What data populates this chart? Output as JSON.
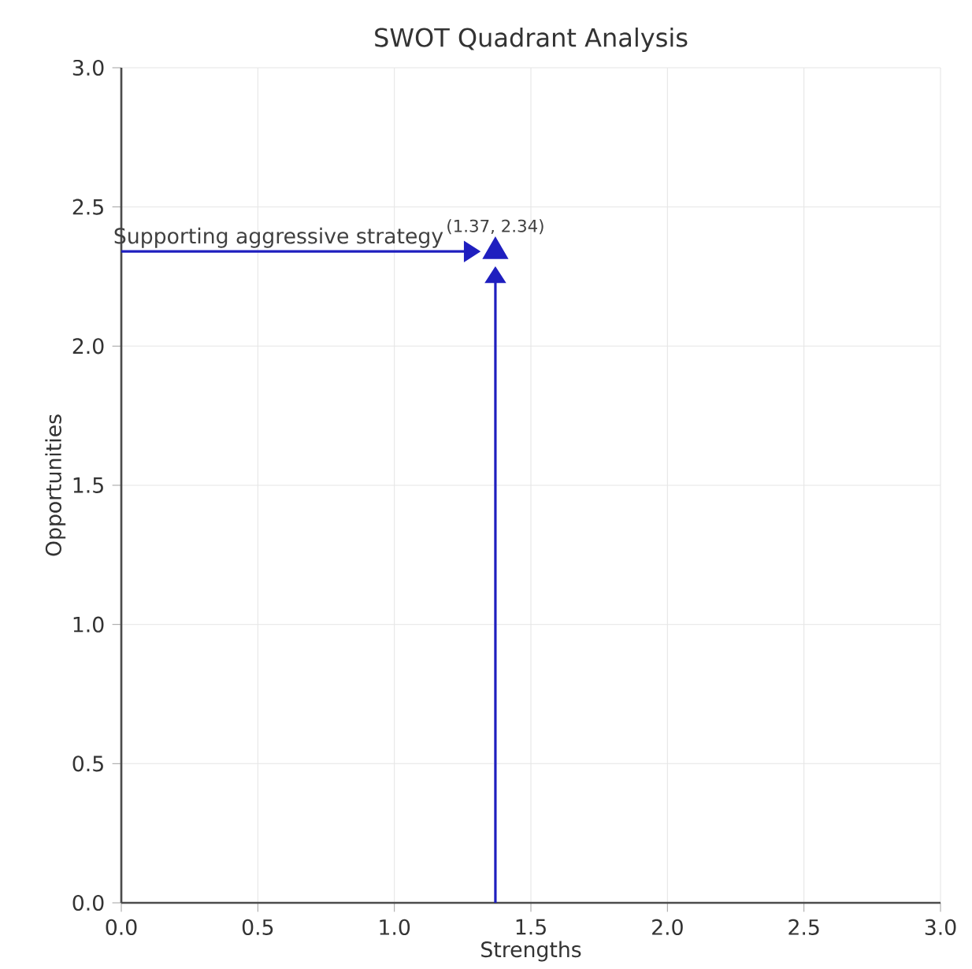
{
  "chart_data": {
    "type": "scatter",
    "title": "SWOT Quadrant Analysis",
    "xlabel": "Strengths",
    "ylabel": "Opportunities",
    "series": [
      {
        "x": [
          1.37
        ],
        "values": [
          2.34
        ],
        "color": "#1f1fbf"
      }
    ],
    "xlim": [
      0,
      3
    ],
    "ylim": [
      0,
      3
    ],
    "xticks": [
      {
        "value": 0,
        "label": "0.0"
      },
      {
        "value": 0.5,
        "label": "0.5"
      },
      {
        "value": 1,
        "label": "1.0"
      },
      {
        "value": 1.5,
        "label": "1.5"
      },
      {
        "value": 2,
        "label": "2.0"
      },
      {
        "value": 2.5,
        "label": "2.5"
      },
      {
        "value": 3,
        "label": "3.0"
      }
    ],
    "yticks": [
      {
        "value": 0,
        "label": "0.0"
      },
      {
        "value": 0.5,
        "label": "0.5"
      },
      {
        "value": 1,
        "label": "1.0"
      },
      {
        "value": 1.5,
        "label": "1.5"
      },
      {
        "value": 2,
        "label": "2.0"
      },
      {
        "value": 2.5,
        "label": "2.5"
      },
      {
        "value": 3,
        "label": "3.0"
      }
    ],
    "grid": true,
    "marker": "triangle",
    "annotations": [
      {
        "text": "(1.37, 2.34)",
        "x": 1.37,
        "y": 2.34
      },
      "Supporting aggressive strategy"
    ]
  }
}
